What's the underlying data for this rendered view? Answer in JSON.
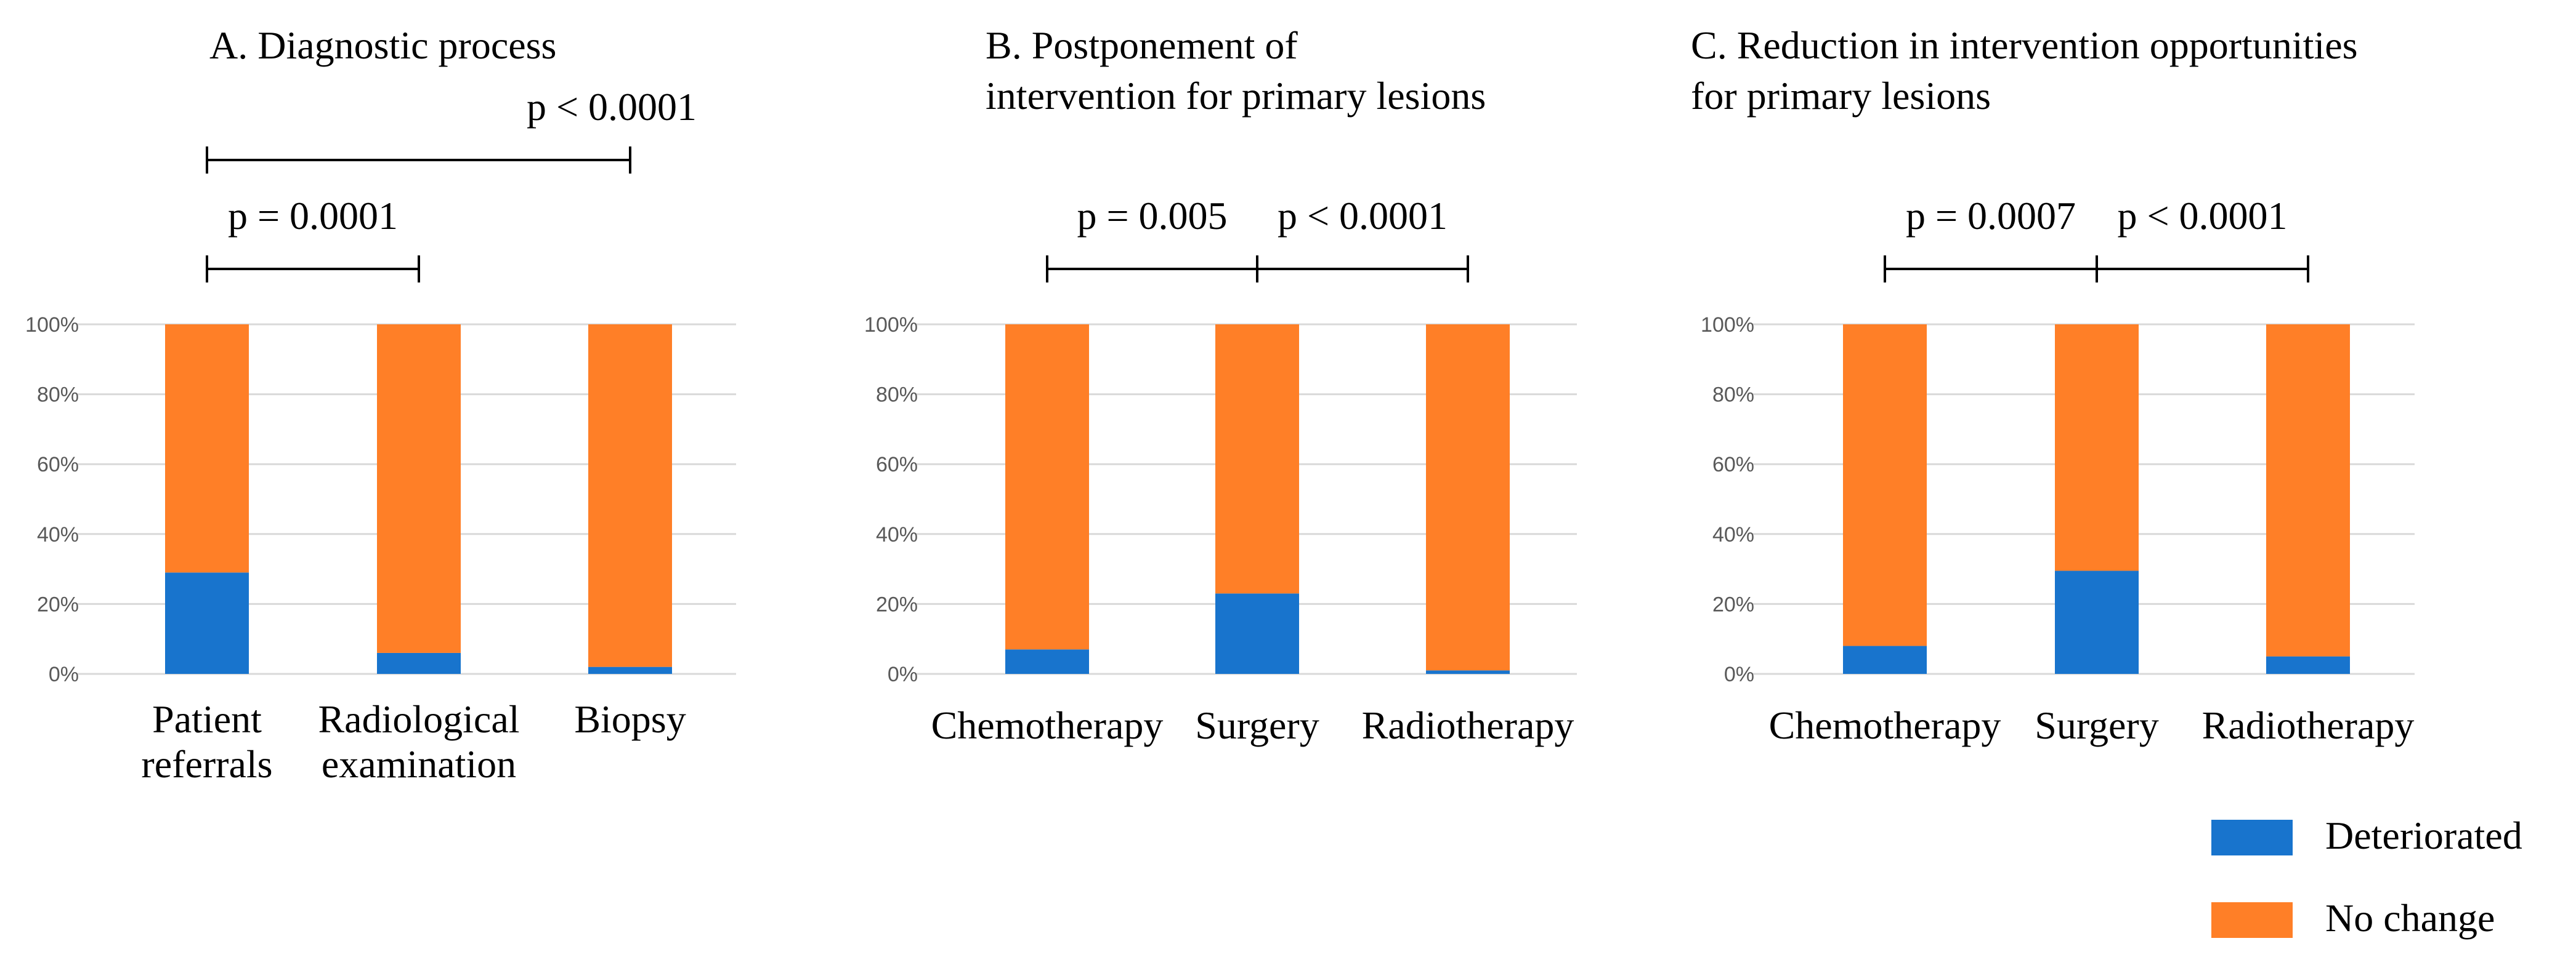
{
  "colors": {
    "deteriorated": "#1874CD",
    "no_change": "#FF7F27"
  },
  "legend": [
    {
      "label": "Deteriorated",
      "color": "#1874CD"
    },
    {
      "label": "No change",
      "color": "#FF7F27"
    }
  ],
  "chart_data": [
    {
      "type": "bar",
      "stacked": "percent",
      "title": [
        "A. Diagnostic process"
      ],
      "categories": [
        [
          "Patient",
          "referrals"
        ],
        [
          "Radiological",
          "examination"
        ],
        [
          "Biopsy"
        ]
      ],
      "series": [
        {
          "name": "Deteriorated",
          "values": [
            29,
            6,
            2
          ]
        },
        {
          "name": "No change",
          "values": [
            71,
            94,
            98
          ]
        }
      ],
      "ylim": [
        0,
        100
      ],
      "yticks": [
        "0%",
        "20%",
        "40%",
        "60%",
        "80%",
        "100%"
      ],
      "grid": true,
      "comparisons": [
        {
          "from": 0,
          "to": 2,
          "label": "p < 0.0001",
          "level": 2
        },
        {
          "from": 0,
          "to": 1,
          "label": "p = 0.0001",
          "level": 1
        }
      ]
    },
    {
      "type": "bar",
      "stacked": "percent",
      "title": [
        "B. Postponement of",
        "intervention for primary lesions"
      ],
      "categories": [
        [
          "Chemotherapy"
        ],
        [
          "Surgery"
        ],
        [
          "Radiotherapy"
        ]
      ],
      "series": [
        {
          "name": "Deteriorated",
          "values": [
            7,
            23,
            1
          ]
        },
        {
          "name": "No change",
          "values": [
            93,
            77,
            99
          ]
        }
      ],
      "ylim": [
        0,
        100
      ],
      "yticks": [
        "0%",
        "20%",
        "40%",
        "60%",
        "80%",
        "100%"
      ],
      "grid": true,
      "comparisons": [
        {
          "from": 0,
          "to": 1,
          "label": "p = 0.005",
          "level": 1
        },
        {
          "from": 1,
          "to": 2,
          "label": "p < 0.0001",
          "level": 1
        }
      ]
    },
    {
      "type": "bar",
      "stacked": "percent",
      "title": [
        "C. Reduction in intervention opportunities",
        "for primary lesions"
      ],
      "categories": [
        [
          "Chemotherapy"
        ],
        [
          "Surgery"
        ],
        [
          "Radiotherapy"
        ]
      ],
      "series": [
        {
          "name": "Deteriorated",
          "values": [
            8,
            29.5,
            5
          ]
        },
        {
          "name": "No change",
          "values": [
            92,
            70.5,
            95
          ]
        }
      ],
      "ylim": [
        0,
        100
      ],
      "yticks": [
        "0%",
        "20%",
        "40%",
        "60%",
        "80%",
        "100%"
      ],
      "grid": true,
      "comparisons": [
        {
          "from": 0,
          "to": 1,
          "label": "p = 0.0007",
          "level": 1
        },
        {
          "from": 1,
          "to": 2,
          "label": "p < 0.0001",
          "level": 1
        }
      ]
    }
  ]
}
